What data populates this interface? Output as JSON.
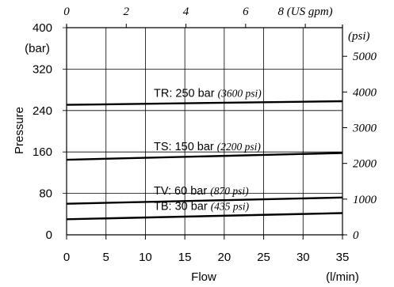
{
  "chart_data": {
    "type": "line",
    "title": "",
    "xlabel": "Flow",
    "xunit": "(l/min)",
    "ylabel": "Pressure",
    "yunit": "(bar)",
    "xlim": [
      0,
      35
    ],
    "ylim": [
      0,
      400
    ],
    "grid": true,
    "x_ticks": [
      0,
      5,
      10,
      15,
      20,
      25,
      30,
      35
    ],
    "y_ticks": [
      0,
      80,
      160,
      240,
      320,
      400
    ],
    "top_axis": {
      "unit": "(US gpm)",
      "ticks": [
        0,
        2,
        4,
        6,
        8
      ],
      "tick_labels": [
        "0",
        "2",
        "4",
        "6",
        "8 (US gpm)"
      ]
    },
    "right_axis": {
      "unit": "(psi)",
      "ticks": [
        0,
        1000,
        2000,
        3000,
        4000,
        5000
      ],
      "tick_labels": [
        "0",
        "1000",
        "2000",
        "3000",
        "4000",
        "5000"
      ]
    },
    "series": [
      {
        "name": "TR",
        "label_main": "TR: 250 bar",
        "label_psi": "(3600 psi)",
        "x": [
          0,
          35
        ],
        "y": [
          251,
          258
        ]
      },
      {
        "name": "TS",
        "label_main": "TS: 150 bar",
        "label_psi": "(2200 psi)",
        "x": [
          0,
          35
        ],
        "y": [
          145,
          158
        ]
      },
      {
        "name": "TV",
        "label_main": "TV: 60 bar",
        "label_psi": "(870 psi)",
        "x": [
          0,
          35
        ],
        "y": [
          60,
          72
        ]
      },
      {
        "name": "TB",
        "label_main": "TB: 30 bar",
        "label_psi": "(435 psi)",
        "x": [
          0,
          35
        ],
        "y": [
          30,
          42
        ]
      }
    ]
  }
}
